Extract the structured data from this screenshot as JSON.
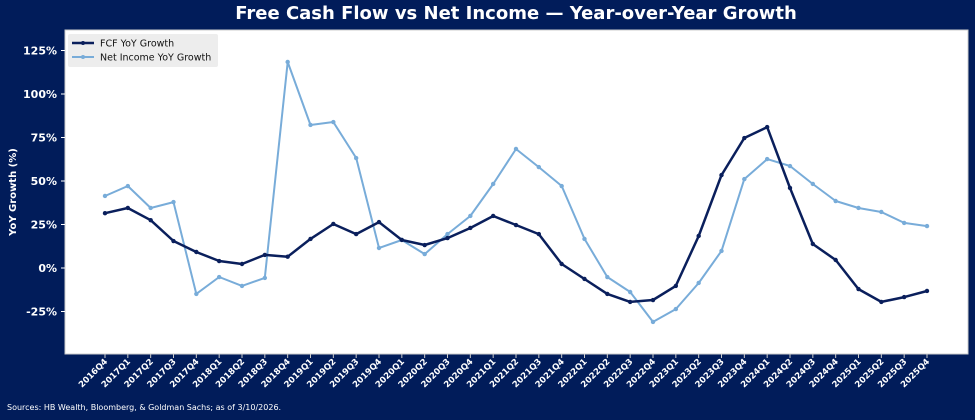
{
  "title": "Free Cash Flow vs Net Income — Year-over-Year Growth",
  "source": "Sources: HB Wealth, Bloomberg, & Goldman Sachs; as of 3/10/2026.",
  "colors": {
    "background": "#011c5a",
    "plot_bg": "#ffffff",
    "fcf": "#0a1f5c",
    "net_income": "#78acd9",
    "text": "#ffffff",
    "legend_bg": "#ececec"
  },
  "chart_data": {
    "type": "line",
    "title": "Free Cash Flow vs Net Income — Year-over-Year Growth",
    "xlabel": "",
    "ylabel": "YoY Growth (%)",
    "ylim": [
      -50,
      137
    ],
    "yticks": [
      -25,
      0,
      25,
      50,
      75,
      100,
      125
    ],
    "ytick_labels": [
      "-25%",
      "0%",
      "25%",
      "50%",
      "75%",
      "100%",
      "125%"
    ],
    "grid": false,
    "legend_position": "upper left",
    "categories": [
      "2016Q4",
      "2017Q1",
      "2017Q2",
      "2017Q3",
      "2017Q4",
      "2018Q1",
      "2018Q2",
      "2018Q3",
      "2018Q4",
      "2019Q1",
      "2019Q2",
      "2019Q3",
      "2019Q4",
      "2020Q1",
      "2020Q2",
      "2020Q3",
      "2020Q4",
      "2021Q1",
      "2021Q2",
      "2021Q3",
      "2021Q4",
      "2022Q1",
      "2022Q2",
      "2022Q3",
      "2022Q4",
      "2023Q1",
      "2023Q2",
      "2023Q3",
      "2023Q4",
      "2024Q1",
      "2024Q2",
      "2024Q3",
      "2024Q4",
      "2025Q1",
      "2025Q2",
      "2025Q3",
      "2025Q4"
    ],
    "series": [
      {
        "name": "FCF YoY Growth",
        "color": "#0a1f5c",
        "values": [
          31.5,
          34.5,
          27.5,
          15.5,
          9.2,
          4.0,
          2.3,
          7.5,
          6.5,
          16.7,
          25.3,
          19.5,
          26.4,
          16.1,
          13.2,
          17.2,
          23.0,
          29.9,
          24.7,
          19.5,
          2.3,
          -6.3,
          -14.9,
          -19.5,
          -18.4,
          -10.3,
          18.4,
          53.4,
          74.7,
          81.0,
          46.0,
          13.8,
          4.6,
          -12.1,
          -19.5,
          -16.7,
          -13.2
        ]
      },
      {
        "name": "Net Income YoY Growth",
        "color": "#78acd9",
        "values": [
          41.4,
          47.1,
          34.5,
          37.9,
          -14.9,
          -5.2,
          -10.3,
          -5.7,
          118.4,
          82.2,
          83.9,
          63.2,
          11.5,
          16.1,
          8.0,
          19.5,
          29.9,
          48.3,
          68.4,
          58.0,
          47.1,
          16.7,
          -5.2,
          -13.8,
          -31.0,
          -23.6,
          -8.6,
          9.8,
          51.1,
          62.6,
          58.6,
          48.3,
          38.5,
          34.5,
          32.2,
          25.9,
          24.1
        ]
      }
    ]
  }
}
